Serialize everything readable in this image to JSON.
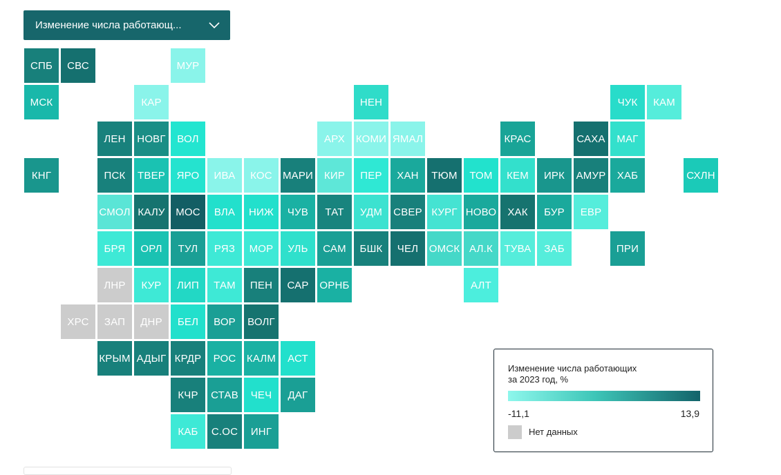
{
  "dropdown": {
    "label": "Изменение числа работающ...",
    "icon": "chevron-down-icon"
  },
  "legend": {
    "title_line1": "Изменение числа работающих",
    "title_line2": "за 2023 год, %",
    "min": "-11,1",
    "max": "13,9",
    "gradient_from": "#8ef7ec",
    "gradient_to": "#13636a",
    "no_data_label": "Нет данных",
    "no_data_color": "#cccccc"
  },
  "tiles": [
    {
      "label": "СПБ",
      "col": 0,
      "row": 0,
      "color": "#18807b"
    },
    {
      "label": "СВС",
      "col": 1,
      "row": 0,
      "color": "#15706f"
    },
    {
      "label": "МУР",
      "col": 4,
      "row": 0,
      "color": "#8af4ea"
    },
    {
      "label": "МСК",
      "col": 0,
      "row": 1,
      "color": "#19b8aa"
    },
    {
      "label": "КАР",
      "col": 3,
      "row": 1,
      "color": "#8af4ea"
    },
    {
      "label": "НЕН",
      "col": 9,
      "row": 1,
      "color": "#2fdcc9"
    },
    {
      "label": "ЧУК",
      "col": 16,
      "row": 1,
      "color": "#28dcca"
    },
    {
      "label": "КАМ",
      "col": 17,
      "row": 1,
      "color": "#55eddb"
    },
    {
      "label": "ЛЕН",
      "col": 2,
      "row": 2,
      "color": "#18817c"
    },
    {
      "label": "НОВГ",
      "col": 3,
      "row": 2,
      "color": "#1a8e86"
    },
    {
      "label": "ВОЛ",
      "col": 4,
      "row": 2,
      "color": "#23e5d0"
    },
    {
      "label": "АРХ",
      "col": 8,
      "row": 2,
      "color": "#8af4ea"
    },
    {
      "label": "КОМИ",
      "col": 9,
      "row": 2,
      "color": "#8af4ea"
    },
    {
      "label": "ЯМАЛ",
      "col": 10,
      "row": 2,
      "color": "#8af4ea"
    },
    {
      "label": "КРАС",
      "col": 13,
      "row": 2,
      "color": "#19a497"
    },
    {
      "label": "САХА",
      "col": 15,
      "row": 2,
      "color": "#15706f"
    },
    {
      "label": "МАГ",
      "col": 16,
      "row": 2,
      "color": "#33e0cc"
    },
    {
      "label": "КНГ",
      "col": 0,
      "row": 3,
      "color": "#19968d"
    },
    {
      "label": "ПСК",
      "col": 2,
      "row": 3,
      "color": "#18817c"
    },
    {
      "label": "ТВЕР",
      "col": 3,
      "row": 3,
      "color": "#1ac2b2"
    },
    {
      "label": "ЯРО",
      "col": 4,
      "row": 3,
      "color": "#25e3cf"
    },
    {
      "label": "ИВА",
      "col": 5,
      "row": 3,
      "color": "#8af4ea"
    },
    {
      "label": "КОС",
      "col": 6,
      "row": 3,
      "color": "#8af4ea"
    },
    {
      "label": "МАРИ",
      "col": 7,
      "row": 3,
      "color": "#18807b"
    },
    {
      "label": "КИР",
      "col": 8,
      "row": 3,
      "color": "#5ee7d8"
    },
    {
      "label": "ПЕР",
      "col": 9,
      "row": 3,
      "color": "#2fe8d4"
    },
    {
      "label": "ХАН",
      "col": 10,
      "row": 3,
      "color": "#1aa99c"
    },
    {
      "label": "ТЮМ",
      "col": 11,
      "row": 3,
      "color": "#15706f"
    },
    {
      "label": "ТОМ",
      "col": 12,
      "row": 3,
      "color": "#22e2cd"
    },
    {
      "label": "КЕМ",
      "col": 13,
      "row": 3,
      "color": "#33e0cc"
    },
    {
      "label": "ИРК",
      "col": 14,
      "row": 3,
      "color": "#19968d"
    },
    {
      "label": "АМУР",
      "col": 15,
      "row": 3,
      "color": "#18807b"
    },
    {
      "label": "ХАБ",
      "col": 16,
      "row": 3,
      "color": "#1aa99c"
    },
    {
      "label": "СХЛН",
      "col": 18,
      "row": 3,
      "color": "#1bcab8"
    },
    {
      "label": "СМОЛ",
      "col": 2,
      "row": 4,
      "color": "#5ae5d6"
    },
    {
      "label": "КАЛУ",
      "col": 3,
      "row": 4,
      "color": "#16736f"
    },
    {
      "label": "МОС",
      "col": 4,
      "row": 4,
      "color": "#135e64"
    },
    {
      "label": "ВЛА",
      "col": 5,
      "row": 4,
      "color": "#22e0cc"
    },
    {
      "label": "НИЖ",
      "col": 6,
      "row": 4,
      "color": "#22e0cc"
    },
    {
      "label": "ЧУВ",
      "col": 7,
      "row": 4,
      "color": "#1ab1a3"
    },
    {
      "label": "ТАТ",
      "col": 8,
      "row": 4,
      "color": "#18847e"
    },
    {
      "label": "УДМ",
      "col": 9,
      "row": 4,
      "color": "#3ce2d0"
    },
    {
      "label": "СВЕР",
      "col": 10,
      "row": 4,
      "color": "#18807b"
    },
    {
      "label": "КУРГ",
      "col": 11,
      "row": 4,
      "color": "#45e3d2"
    },
    {
      "label": "НОВО",
      "col": 12,
      "row": 4,
      "color": "#1aa99c"
    },
    {
      "label": "ХАК",
      "col": 13,
      "row": 4,
      "color": "#16736f"
    },
    {
      "label": "БУР",
      "col": 14,
      "row": 4,
      "color": "#1aa99c"
    },
    {
      "label": "ЕВР",
      "col": 15,
      "row": 4,
      "color": "#55eddb"
    },
    {
      "label": "БРЯ",
      "col": 2,
      "row": 5,
      "color": "#3ee9d6"
    },
    {
      "label": "ОРЛ",
      "col": 3,
      "row": 5,
      "color": "#1ac2b2"
    },
    {
      "label": "ТУЛ",
      "col": 4,
      "row": 5,
      "color": "#1a9f95"
    },
    {
      "label": "РЯЗ",
      "col": 5,
      "row": 5,
      "color": "#3ee9d6"
    },
    {
      "label": "МОР",
      "col": 6,
      "row": 5,
      "color": "#3ee9d6"
    },
    {
      "label": "УЛЬ",
      "col": 7,
      "row": 5,
      "color": "#2fe0cc"
    },
    {
      "label": "САМ",
      "col": 8,
      "row": 5,
      "color": "#1a9f95"
    },
    {
      "label": "БШК",
      "col": 9,
      "row": 5,
      "color": "#18817c"
    },
    {
      "label": "ЧЕЛ",
      "col": 10,
      "row": 5,
      "color": "#15706f"
    },
    {
      "label": "ОМСК",
      "col": 11,
      "row": 5,
      "color": "#45d8c8"
    },
    {
      "label": "АЛ.К",
      "col": 12,
      "row": 5,
      "color": "#45d8c8"
    },
    {
      "label": "ТУВА",
      "col": 13,
      "row": 5,
      "color": "#55eddb"
    },
    {
      "label": "ЗАБ",
      "col": 14,
      "row": 5,
      "color": "#55eddb"
    },
    {
      "label": "ПРИ",
      "col": 16,
      "row": 5,
      "color": "#1a9f95"
    },
    {
      "label": "ЛНР",
      "col": 2,
      "row": 6,
      "color": "#cccccc"
    },
    {
      "label": "КУР",
      "col": 3,
      "row": 6,
      "color": "#3ee9d6"
    },
    {
      "label": "ЛИП",
      "col": 4,
      "row": 6,
      "color": "#22d8c5"
    },
    {
      "label": "ТАМ",
      "col": 5,
      "row": 6,
      "color": "#3ee9d6"
    },
    {
      "label": "ПЕН",
      "col": 6,
      "row": 6,
      "color": "#18807b"
    },
    {
      "label": "САР",
      "col": 7,
      "row": 6,
      "color": "#15706f"
    },
    {
      "label": "ОРНБ",
      "col": 8,
      "row": 6,
      "color": "#1ab1a3"
    },
    {
      "label": "АЛТ",
      "col": 12,
      "row": 6,
      "color": "#4ceedd"
    },
    {
      "label": "ХРС",
      "col": 1,
      "row": 7,
      "color": "#cccccc"
    },
    {
      "label": "ЗАП",
      "col": 2,
      "row": 7,
      "color": "#cccccc"
    },
    {
      "label": "ДНР",
      "col": 3,
      "row": 7,
      "color": "#cccccc"
    },
    {
      "label": "БЕЛ",
      "col": 4,
      "row": 7,
      "color": "#22e0cc"
    },
    {
      "label": "ВОР",
      "col": 5,
      "row": 7,
      "color": "#1a9f95"
    },
    {
      "label": "ВОЛГ",
      "col": 6,
      "row": 7,
      "color": "#16736f"
    },
    {
      "label": "КРЫМ",
      "col": 2,
      "row": 8,
      "color": "#18807b"
    },
    {
      "label": "АДЫГ",
      "col": 3,
      "row": 8,
      "color": "#18807b"
    },
    {
      "label": "КРДР",
      "col": 4,
      "row": 8,
      "color": "#18807b"
    },
    {
      "label": "РОС",
      "col": 5,
      "row": 8,
      "color": "#1ab1a3"
    },
    {
      "label": "КАЛМ",
      "col": 6,
      "row": 8,
      "color": "#1ab1a3"
    },
    {
      "label": "АСТ",
      "col": 7,
      "row": 8,
      "color": "#22e0cc"
    },
    {
      "label": "КЧР",
      "col": 4,
      "row": 9,
      "color": "#18807b"
    },
    {
      "label": "СТАВ",
      "col": 5,
      "row": 9,
      "color": "#1a9f95"
    },
    {
      "label": "ЧЕЧ",
      "col": 6,
      "row": 9,
      "color": "#22e0cc"
    },
    {
      "label": "ДАГ",
      "col": 7,
      "row": 9,
      "color": "#1a9f95"
    },
    {
      "label": "КАБ",
      "col": 4,
      "row": 10,
      "color": "#3ee9d6"
    },
    {
      "label": "С.ОС",
      "col": 5,
      "row": 10,
      "color": "#18807b"
    },
    {
      "label": "ИНГ",
      "col": 6,
      "row": 10,
      "color": "#1a9f95"
    }
  ]
}
